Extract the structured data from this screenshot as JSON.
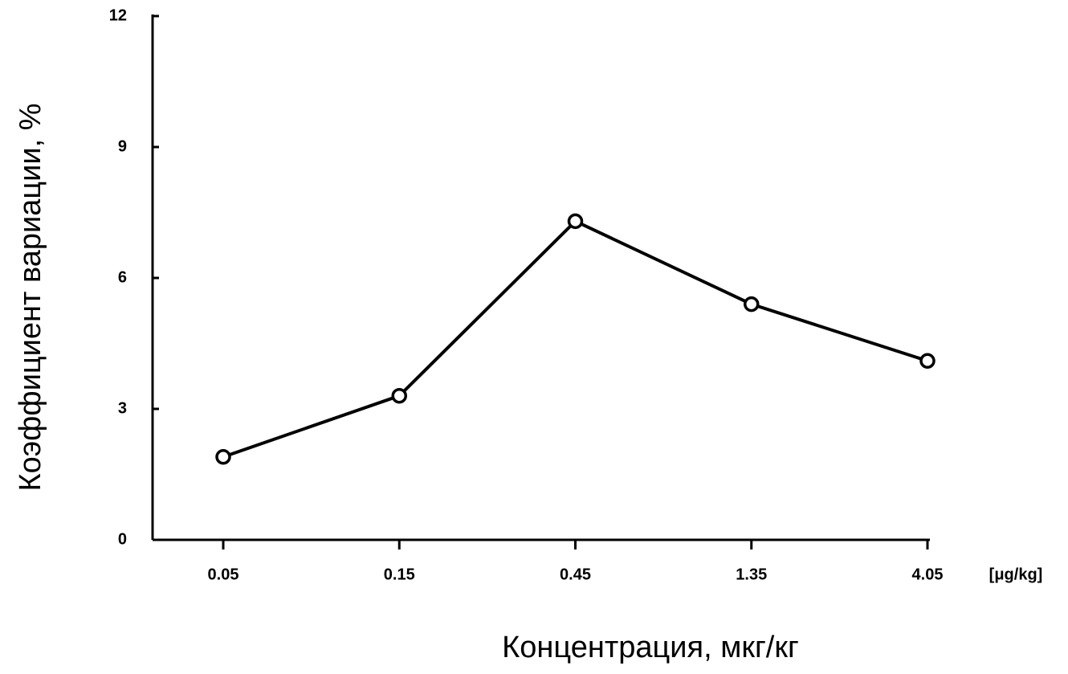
{
  "chart_data": {
    "type": "line",
    "y_label": "Коэффициент вариации, %",
    "x_label": "Концентрация, мкг/кг",
    "x_unit_label": "[μg/kg]",
    "categories": [
      "0.05",
      "0.15",
      "0.45",
      "1.35",
      "4.05"
    ],
    "series": [
      {
        "color": "#000000",
        "values": [
          1.9,
          3.3,
          7.3,
          5.4,
          4.1
        ]
      }
    ],
    "ylim": [
      0,
      12
    ],
    "yticks": [
      0,
      3,
      6,
      9,
      12
    ],
    "grid": false
  }
}
